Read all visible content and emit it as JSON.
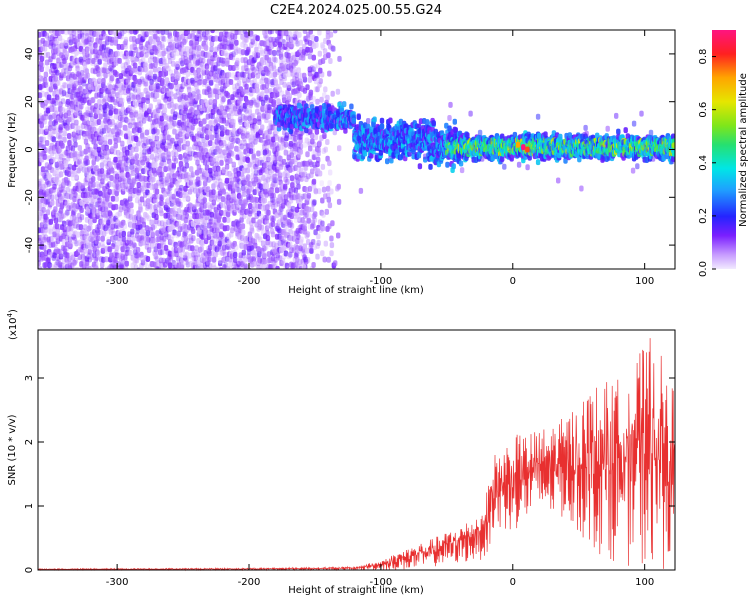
{
  "title": "C2E4.2024.025.00.55.G24",
  "chart_data": [
    {
      "type": "heatmap",
      "xlabel": "Height of straight line (km)",
      "ylabel": "Frequency (Hz)",
      "xlim": [
        -360,
        123
      ],
      "ylim": [
        -50,
        50
      ],
      "x_ticks": [
        -300,
        -200,
        -100,
        0,
        100
      ],
      "y_ticks": [
        -40,
        -20,
        0,
        20,
        40
      ],
      "colorbar": {
        "label": "Normalized spectral amplitude",
        "range": [
          0.0,
          0.9
        ],
        "ticks": [
          0.0,
          0.2,
          0.4,
          0.6,
          0.8
        ],
        "colormap": "rainbow: white-lavender at 0.0, violet/blue, cyan, green, yellow, orange, red, magenta at 0.9"
      },
      "features": [
        {
          "x_range": [
            -360,
            -130
          ],
          "frequency_range": [
            -50,
            50
          ],
          "amplitude_range": [
            0.0,
            0.15
          ],
          "description": "scattered noise"
        },
        {
          "x_range": [
            -180,
            -120
          ],
          "frequency_center": 14,
          "amplitude_range": [
            0.1,
            0.35
          ]
        },
        {
          "x_range": [
            -120,
            123
          ],
          "frequency_center": 1,
          "amplitude_range": [
            0.1,
            0.9
          ]
        }
      ],
      "peak": {
        "x": 8,
        "frequency": 1,
        "amplitude": 0.9
      }
    },
    {
      "type": "line",
      "xlabel": "Height of straight line (km)",
      "ylabel": "SNR (10 * v/v)",
      "y_scale_label": "(x10",
      "y_scale_exponent": "4",
      "xlim": [
        -360,
        123
      ],
      "ylim": [
        0,
        3.75
      ],
      "x_ticks": [
        -300,
        -200,
        -100,
        0,
        100
      ],
      "y_ticks": [
        0,
        1,
        2,
        3
      ],
      "series": [
        {
          "color": "#e83030",
          "envelope": [
            {
              "x": -360,
              "low": 0.0,
              "high": 0.02
            },
            {
              "x": -200,
              "low": 0.0,
              "high": 0.03
            },
            {
              "x": -120,
              "low": 0.0,
              "high": 0.05
            },
            {
              "x": -100,
              "low": 0.0,
              "high": 0.15
            },
            {
              "x": -80,
              "low": 0.0,
              "high": 0.35
            },
            {
              "x": -60,
              "low": 0.05,
              "high": 0.5
            },
            {
              "x": -40,
              "low": 0.1,
              "high": 0.7
            },
            {
              "x": -25,
              "low": 0.15,
              "high": 0.9
            },
            {
              "x": -20,
              "low": 0.2,
              "high": 1.2
            },
            {
              "x": -15,
              "low": 0.5,
              "high": 1.8
            },
            {
              "x": 0,
              "low": 0.6,
              "high": 2.1
            },
            {
              "x": 20,
              "low": 0.8,
              "high": 2.2
            },
            {
              "x": 40,
              "low": 0.8,
              "high": 2.4
            },
            {
              "x": 60,
              "low": 0.3,
              "high": 2.9
            },
            {
              "x": 80,
              "low": 0.1,
              "high": 3.0
            },
            {
              "x": 100,
              "low": 0.0,
              "high": 3.5
            },
            {
              "x": 105,
              "low": 0.0,
              "high": 3.75
            },
            {
              "x": 123,
              "low": 0.0,
              "high": 2.8
            }
          ]
        }
      ]
    }
  ]
}
